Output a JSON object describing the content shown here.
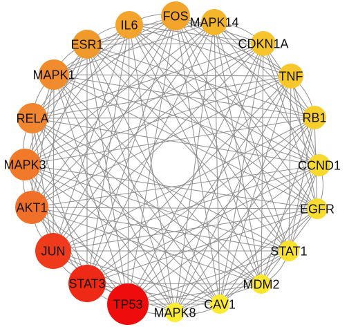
{
  "nodes": [
    {
      "id": "FOS",
      "label": "FOS",
      "color": "#f2a52a"
    },
    {
      "id": "MAPK14",
      "label": "MAPK14",
      "color": "#f4b62b"
    },
    {
      "id": "CDKN1A",
      "label": "CDKN1A",
      "color": "#f6c42c"
    },
    {
      "id": "TNF",
      "label": "TNF",
      "color": "#f6c82c"
    },
    {
      "id": "RB1",
      "label": "RB1",
      "color": "#f7cf2d"
    },
    {
      "id": "CCND1",
      "label": "CCND1",
      "color": "#f8d92e"
    },
    {
      "id": "EGFR",
      "label": "EGFR",
      "color": "#f8dd2e"
    },
    {
      "id": "STAT1",
      "label": "STAT1",
      "color": "#f9e12f"
    },
    {
      "id": "MDM2",
      "label": "MDM2",
      "color": "#fae52f"
    },
    {
      "id": "CAV1",
      "label": "CAV1",
      "color": "#fbea30"
    },
    {
      "id": "MAPK8",
      "label": "MAPK8",
      "color": "#fbed30"
    },
    {
      "id": "TP53",
      "label": "TP53",
      "color": "#ee0c0c"
    },
    {
      "id": "STAT3",
      "label": "STAT3",
      "color": "#ee2a16"
    },
    {
      "id": "JUN",
      "label": "JUN",
      "color": "#ef3a1b"
    },
    {
      "id": "AKT1",
      "label": "AKT1",
      "color": "#f0702a"
    },
    {
      "id": "MAPK3",
      "label": "MAPK3",
      "color": "#f07a2a"
    },
    {
      "id": "RELA",
      "label": "RELA",
      "color": "#f08630"
    },
    {
      "id": "MAPK1",
      "label": "MAPK1",
      "color": "#f08c2e"
    },
    {
      "id": "ESR1",
      "label": "ESR1",
      "color": "#f19a2c"
    },
    {
      "id": "IL6",
      "label": "IL6",
      "color": "#f2a42c"
    }
  ],
  "edge_color": "#8c8c8c"
}
